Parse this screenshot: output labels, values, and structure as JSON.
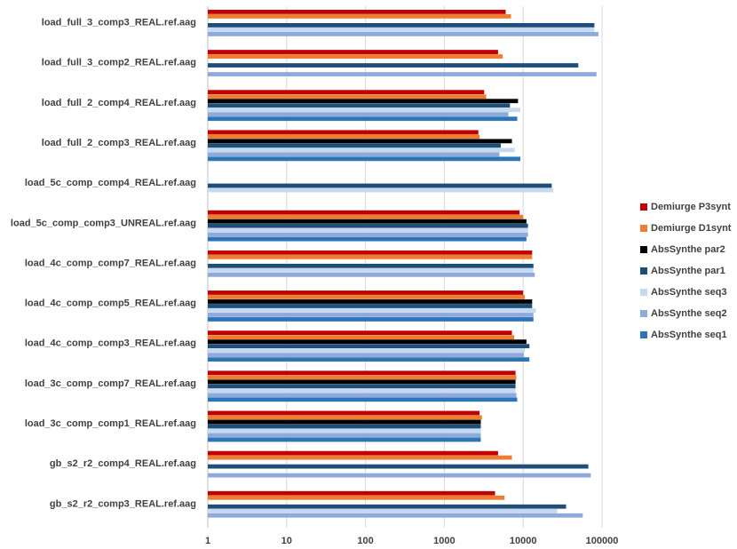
{
  "chart_data": {
    "type": "bar",
    "orientation": "horizontal",
    "x_scale": "log",
    "xlim": [
      1,
      100000
    ],
    "x_ticks": [
      "1",
      "10",
      "100",
      "1000",
      "10000",
      "100000"
    ],
    "grid": true,
    "legend_position": "right",
    "categories": [
      "load_full_3_comp3_REAL.ref.aag",
      "load_full_3_comp2_REAL.ref.aag",
      "load_full_2_comp4_REAL.ref.aag",
      "load_full_2_comp3_REAL.ref.aag",
      "load_5c_comp_comp4_REAL.ref.aag",
      "load_5c_comp_comp3_UNREAL.ref.aag",
      "load_4c_comp_comp7_REAL.ref.aag",
      "load_4c_comp_comp5_REAL.ref.aag",
      "load_4c_comp_comp3_REAL.ref.aag",
      "load_3c_comp_comp7_REAL.ref.aag",
      "load_3c_comp_comp1_REAL.ref.aag",
      "gb_s2_r2_comp4_REAL.ref.aag",
      "gb_s2_r2_comp3_REAL.ref.aag"
    ],
    "series": [
      {
        "name": "Demiurge P3synt",
        "color": "#c00000",
        "values": [
          6000,
          4800,
          3200,
          2700,
          null,
          9000,
          13000,
          10000,
          7200,
          8000,
          2800,
          4800,
          4400
        ]
      },
      {
        "name": "Demiurge D1synt",
        "color": "#ed7d31",
        "values": [
          7000,
          5500,
          3400,
          2800,
          null,
          10000,
          13000,
          10500,
          7700,
          8200,
          3000,
          7200,
          5800
        ]
      },
      {
        "name": "AbsSynthe par2",
        "color": "#000000",
        "values": [
          null,
          null,
          8600,
          7200,
          null,
          11000,
          null,
          13000,
          11000,
          8000,
          2900,
          null,
          null
        ]
      },
      {
        "name": "AbsSynthe par1",
        "color": "#1f4e79",
        "values": [
          80000,
          50000,
          6800,
          5200,
          23000,
          11500,
          13500,
          13000,
          12000,
          8000,
          2900,
          67000,
          35000
        ]
      },
      {
        "name": "AbsSynthe seq3",
        "color": "#c5d9f1",
        "values": [
          80000,
          null,
          9200,
          7800,
          24000,
          11500,
          13500,
          14500,
          10500,
          8000,
          2900,
          null,
          27000
        ]
      },
      {
        "name": "AbsSynthe seq2",
        "color": "#8eaadb",
        "values": [
          90000,
          85000,
          6500,
          5000,
          null,
          11500,
          14000,
          13500,
          10200,
          8200,
          2900,
          72000,
          57000
        ]
      },
      {
        "name": "AbsSynthe seq1",
        "color": "#2e75b6",
        "values": [
          null,
          null,
          8400,
          9200,
          null,
          11000,
          null,
          13500,
          12000,
          8400,
          2900,
          null,
          null
        ]
      }
    ]
  }
}
